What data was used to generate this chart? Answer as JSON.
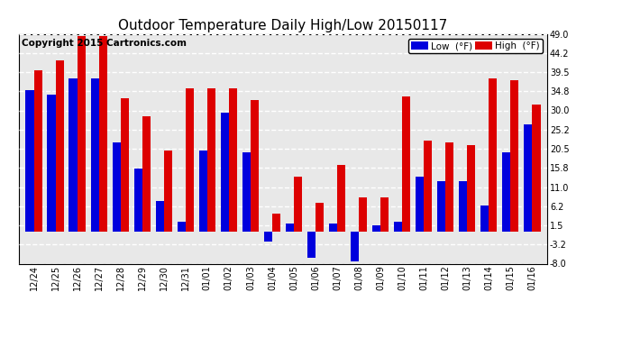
{
  "title": "Outdoor Temperature Daily High/Low 20150117",
  "copyright": "Copyright 2015 Cartronics.com",
  "dates": [
    "12/24",
    "12/25",
    "12/26",
    "12/27",
    "12/28",
    "12/29",
    "12/30",
    "12/31",
    "01/01",
    "01/02",
    "01/03",
    "01/04",
    "01/05",
    "01/06",
    "01/07",
    "01/08",
    "01/09",
    "01/10",
    "01/11",
    "01/12",
    "01/13",
    "01/14",
    "01/15",
    "01/16"
  ],
  "high": [
    40.0,
    42.5,
    48.5,
    48.5,
    33.0,
    28.5,
    20.0,
    35.5,
    35.5,
    35.5,
    32.5,
    4.5,
    13.5,
    7.0,
    16.5,
    8.5,
    8.5,
    33.5,
    22.5,
    22.0,
    21.5,
    38.0,
    37.5,
    31.5
  ],
  "low": [
    35.0,
    34.0,
    38.0,
    38.0,
    22.0,
    15.5,
    7.5,
    2.5,
    20.0,
    29.5,
    19.5,
    -2.5,
    2.0,
    -6.5,
    2.0,
    -7.5,
    1.5,
    2.5,
    13.5,
    12.5,
    12.5,
    6.5,
    19.5,
    26.5
  ],
  "ylim": [
    -8.0,
    49.0
  ],
  "yticks": [
    -8.0,
    -3.2,
    1.5,
    6.2,
    11.0,
    15.8,
    20.5,
    25.2,
    30.0,
    34.8,
    39.5,
    44.2,
    49.0
  ],
  "bar_width": 0.38,
  "low_color": "#0000dd",
  "high_color": "#dd0000",
  "bg_color": "#ffffff",
  "plot_bg": "#ffffff",
  "grid_color": "#aaaaaa",
  "title_fontsize": 11,
  "copyright_fontsize": 7.5,
  "legend_low_label": "Low  (°F)",
  "legend_high_label": "High  (°F)"
}
